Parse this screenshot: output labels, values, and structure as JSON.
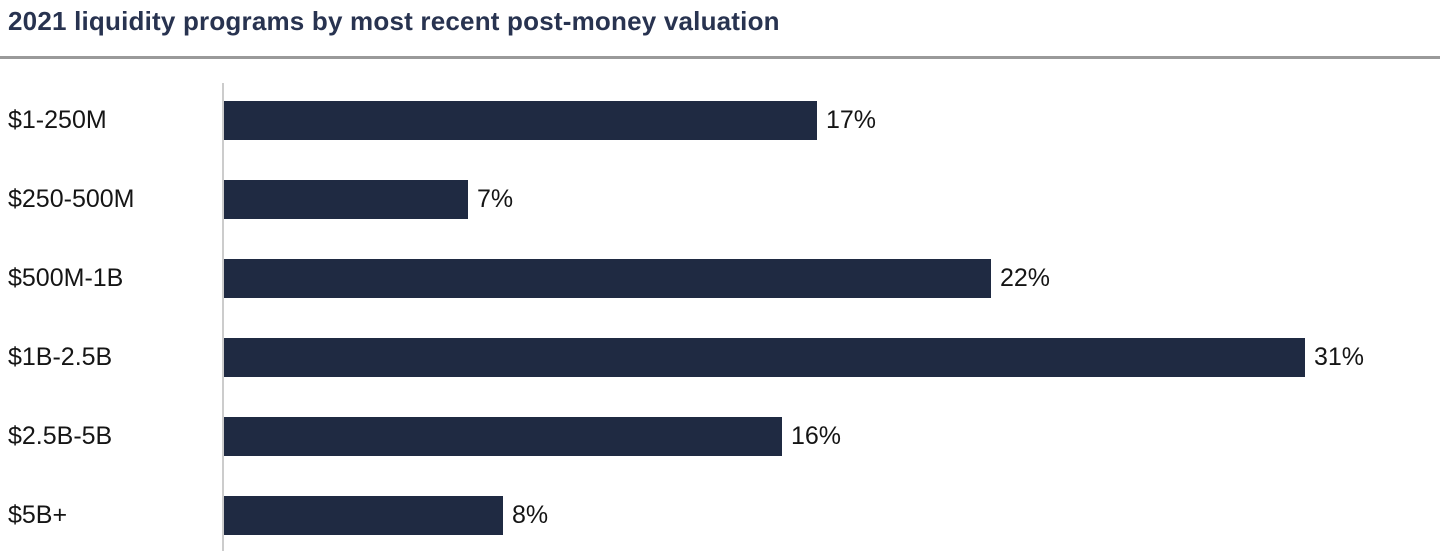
{
  "page": {
    "title": "2021 liquidity programs by most recent post-money valuation"
  },
  "colors": {
    "bar": "#1f2a42",
    "title_text": "#283350",
    "divider": "#9a9a9a",
    "axis_line": "#cccccc",
    "label_text": "#151515"
  },
  "chart_data": {
    "type": "bar",
    "orientation": "horizontal",
    "title": "2021 liquidity programs by most recent post-money valuation",
    "categories": [
      "$1-250M",
      "$250-500M",
      "$500M-1B",
      "$1B-2.5B",
      "$2.5B-5B",
      "$5B+"
    ],
    "values": [
      17,
      7,
      22,
      31,
      16,
      8
    ],
    "data_labels": [
      "17%",
      "7%",
      "22%",
      "31%",
      "16%",
      "8%"
    ],
    "value_suffix": "%",
    "xlabel": "",
    "ylabel": "",
    "xlim": [
      0,
      35
    ],
    "grid": false,
    "legend_position": "none",
    "bar_color": "#1f2a42"
  }
}
